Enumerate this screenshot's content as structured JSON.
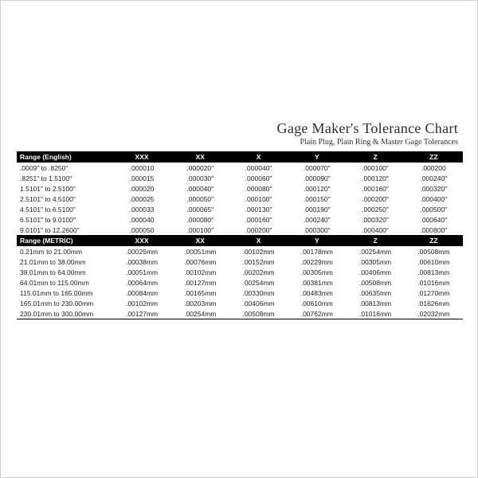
{
  "title": {
    "main": "Gage Maker's Tolerance Chart",
    "sub": "Plain Plug, Plain Ring & Master Gage Tolerances",
    "main_fontsize": 18,
    "sub_fontsize": 10,
    "font_family": "Georgia, serif",
    "text_color": "#2c2c2c"
  },
  "table_style": {
    "header_bg": "#000000",
    "header_fg": "#ffffff",
    "body_fontsize": 8.5,
    "body_color": "#222222",
    "border_color": "#000000"
  },
  "sections": [
    {
      "header": [
        "Range  (English)",
        "XXX",
        "XX",
        "X",
        "Y",
        "Z",
        "ZZ"
      ],
      "rows": [
        [
          ".0009\"  to  .8250\"",
          ".000010",
          ".000020\"",
          ".000040\"",
          ".000070\"",
          ".000100\"",
          ".000200"
        ],
        [
          ".8251\"  to  1.5100\"",
          ".000015",
          ".000030\"",
          ".000060\"",
          ".000090\"",
          ".000120\"",
          ".000240\""
        ],
        [
          "1.5101\"  to  2.5100\"",
          ".000020",
          ".000040\"",
          ".000080\"",
          ".000120\"",
          ".000160\"",
          ".000320\""
        ],
        [
          "2.5101\"  to  4.5100\"",
          ".000025",
          ".000050\"",
          ".000100\"",
          ".000150\"",
          ".000200\"",
          ".000400\""
        ],
        [
          "4.5101\"  to  6.5100\"",
          ".000033",
          ".000065\"",
          ".000130\"",
          ".000190\"",
          ".000250\"",
          ".000500\""
        ],
        [
          "6.5101\"  to  9.0100\"",
          ".000040",
          ".000080\"",
          ".000160\"",
          ".000240\"",
          ".000320\"",
          ".000640\""
        ],
        [
          "9.0101\"  to  12.2600\"",
          ".000050",
          ".000100\"",
          ".000200\"",
          ".000300\"",
          ".000400\"",
          ".000800\""
        ]
      ]
    },
    {
      "header": [
        "Range  (METRIC)",
        "XXX",
        "XX",
        "X",
        "Y",
        "Z",
        "ZZ"
      ],
      "rows": [
        [
          "0.21mm  to  21.00mm",
          ".00025mm",
          ".00051mm",
          ".00102mm",
          ".00178mm",
          ".00254mm",
          ".00508mm"
        ],
        [
          "21.01mm  to  38.00mm",
          ".00038mm",
          ".00076mm",
          ".00152mm",
          ".00229mm",
          ".00305mm",
          ".00610mm"
        ],
        [
          "38.01mm  to  64.00mm",
          ".00051mm",
          ".00102mm",
          ".00202mm",
          ".00305mm",
          ".00406mm",
          ".00813mm"
        ],
        [
          "64.01mm  to  115.00mm",
          ".00064mm",
          ".00127mm",
          ".00254mm",
          ".00381mm",
          ".00508mm",
          ".01016mm"
        ],
        [
          "115.01mm  to  165.00mm",
          ".00084mm",
          ".00165mm",
          ".00330mm",
          ".00483mm",
          ".00635mm",
          ".01270mm"
        ],
        [
          "165.01mm  to  230.00mm",
          ".00102mm",
          ".00203mm",
          ".00406mm",
          ".00610mm",
          ".00813mm",
          ".01626mm"
        ],
        [
          "230.01mm  to  300.00mm",
          ".00127mm",
          ".00254mm",
          ".00508mm",
          ".00762mm",
          ".01016mm",
          ".02032mm"
        ]
      ]
    }
  ]
}
